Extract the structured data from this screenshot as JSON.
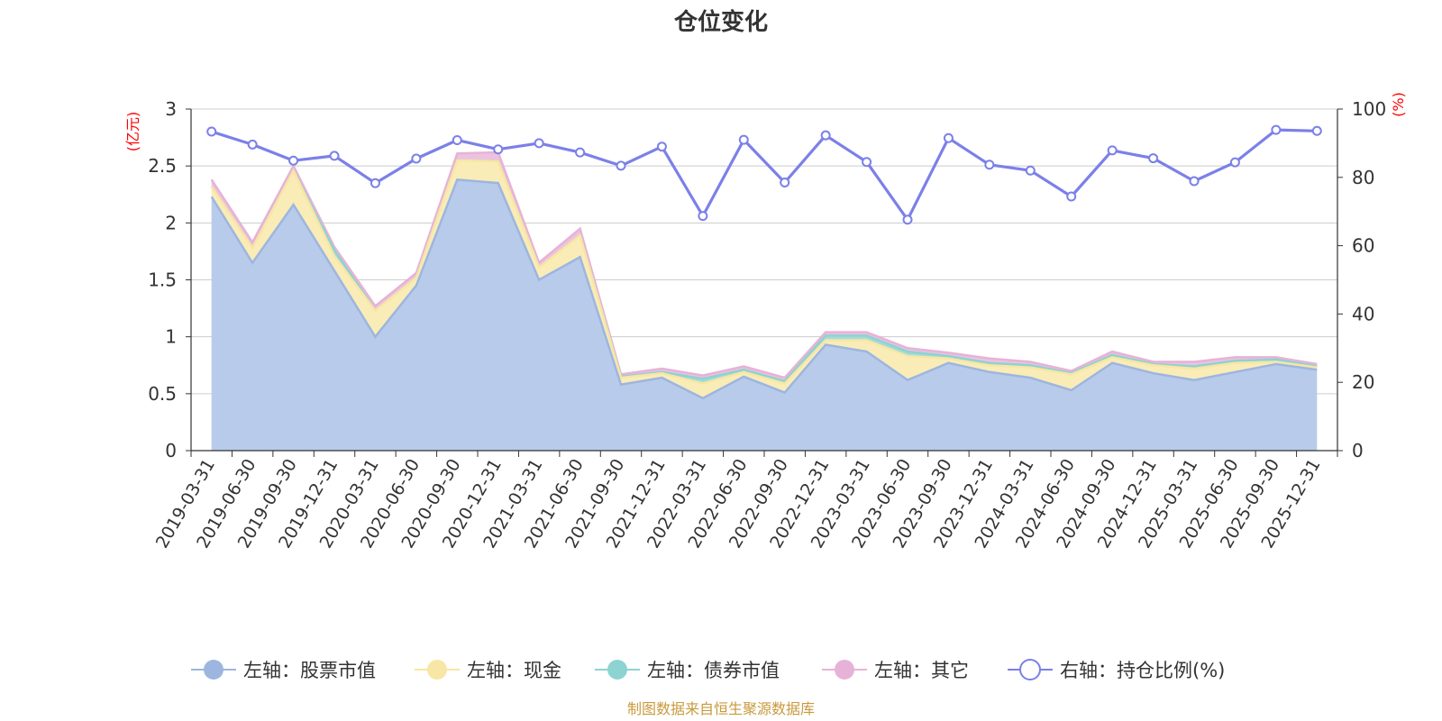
{
  "chart_data": {
    "type": "area",
    "title": "仓位变化",
    "left_unit": "(亿元)",
    "right_unit": "(%)",
    "left_ylim": [
      0,
      3
    ],
    "left_ticks": [
      "0",
      "0.5",
      "1",
      "1.5",
      "2",
      "2.5",
      "3"
    ],
    "right_ylim": [
      0,
      100
    ],
    "right_ticks": [
      "0",
      "20",
      "40",
      "60",
      "80",
      "100"
    ],
    "categories": [
      "2019-03-31",
      "2019-06-30",
      "2019-09-30",
      "2019-12-31",
      "2020-03-31",
      "2020-06-30",
      "2020-09-30",
      "2020-12-31",
      "2021-03-31",
      "2021-06-30",
      "2021-09-30",
      "2021-12-31",
      "2022-03-31",
      "2022-06-30",
      "2022-09-30",
      "2022-12-31",
      "2023-03-31",
      "2023-06-30",
      "2023-09-30",
      "2023-12-31",
      "2024-03-31",
      "2024-06-30",
      "2024-09-30",
      "2024-12-31",
      "2025-03-31",
      "2025-06-30",
      "2025-09-30",
      "2025-12-31"
    ],
    "stacked_series": [
      {
        "name": "左轴：股票市值",
        "axis": "left",
        "color": "#9db6df",
        "fill": "#b8cbea",
        "values": [
          2.23,
          1.65,
          2.16,
          1.58,
          1.0,
          1.45,
          2.38,
          2.35,
          1.5,
          1.7,
          0.58,
          0.64,
          0.46,
          0.65,
          0.51,
          0.93,
          0.87,
          0.62,
          0.77,
          0.69,
          0.64,
          0.53,
          0.77,
          0.68,
          0.62,
          0.69,
          0.76,
          0.71
        ]
      },
      {
        "name": "左轴：现金",
        "axis": "left",
        "color": "#f7e6a4",
        "fill": "#faecb7",
        "values": [
          0.09,
          0.13,
          0.3,
          0.13,
          0.23,
          0.07,
          0.17,
          0.19,
          0.11,
          0.19,
          0.06,
          0.04,
          0.13,
          0.04,
          0.08,
          0.04,
          0.1,
          0.21,
          0.04,
          0.06,
          0.09,
          0.14,
          0.05,
          0.07,
          0.1,
          0.08,
          0.02,
          0.02
        ]
      },
      {
        "name": "左轴：债券市值",
        "axis": "left",
        "color": "#8dd3d1",
        "fill": "#a3dbd9",
        "values": [
          0,
          0,
          0,
          0.05,
          0,
          0,
          0,
          0,
          0,
          0,
          0.01,
          0.01,
          0.04,
          0.02,
          0.02,
          0.04,
          0.04,
          0.04,
          0.02,
          0.02,
          0.02,
          0.01,
          0.02,
          0.01,
          0.02,
          0.02,
          0.02,
          0.01
        ]
      },
      {
        "name": "左轴：其它",
        "axis": "left",
        "color": "#e7b2d8",
        "fill": "#ecc3df",
        "values": [
          0.06,
          0.05,
          0.04,
          0.03,
          0.04,
          0.04,
          0.06,
          0.08,
          0.04,
          0.06,
          0.02,
          0.03,
          0.03,
          0.03,
          0.03,
          0.03,
          0.03,
          0.03,
          0.03,
          0.04,
          0.03,
          0.02,
          0.03,
          0.02,
          0.04,
          0.03,
          0.02,
          0.02
        ]
      }
    ],
    "line_series": {
      "name": "右轴：持仓比例(%)",
      "axis": "right",
      "color": "#7b80e8",
      "values": [
        93.4,
        89.6,
        84.9,
        86.3,
        78.3,
        85.5,
        90.9,
        88.2,
        90.0,
        87.3,
        83.4,
        89.0,
        68.7,
        91.0,
        78.5,
        92.3,
        84.5,
        67.6,
        91.5,
        83.7,
        82.0,
        74.4,
        87.9,
        85.6,
        78.9,
        84.4,
        93.9,
        93.6
      ]
    },
    "legend_position": "bottom",
    "source": "制图数据来自恒生聚源数据库"
  }
}
